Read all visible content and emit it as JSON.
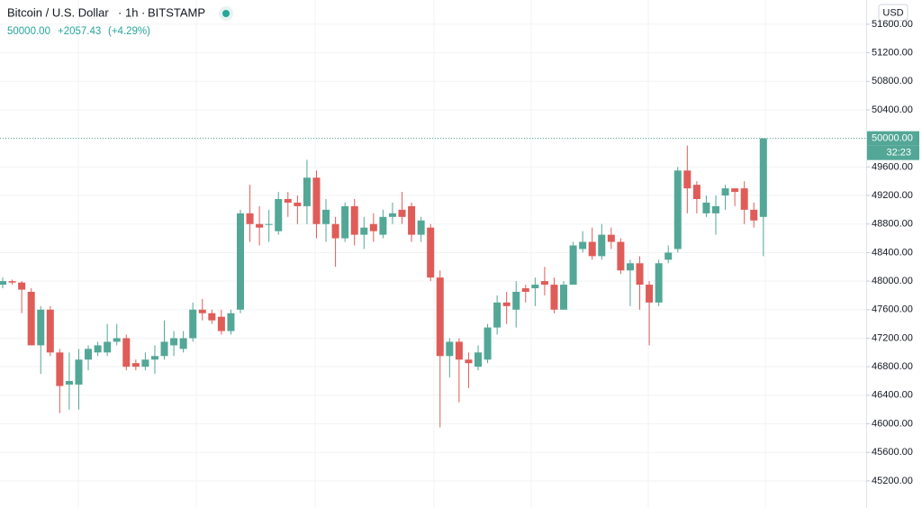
{
  "header": {
    "symbol": "Bitcoin / U.S. Dollar",
    "interval": "1h",
    "exchange": "BITSTAMP",
    "last": "50000.00",
    "change": "+2057.43",
    "change_pct": "(+4.29%)"
  },
  "currency_button": "USD",
  "countdown": "32:23",
  "chart_data": {
    "type": "candlestick",
    "up_color": "#53a797",
    "down_color": "#e05c58",
    "ylim": [
      44820,
      51940
    ],
    "yticks": [
      {
        "value": 45200,
        "label": "45200.00"
      },
      {
        "value": 45600,
        "label": "45600.00"
      },
      {
        "value": 46000,
        "label": "46000.00"
      },
      {
        "value": 46400,
        "label": "46400.00"
      },
      {
        "value": 46800,
        "label": "46800.00"
      },
      {
        "value": 47200,
        "label": "47200.00"
      },
      {
        "value": 47600,
        "label": "47600.00"
      },
      {
        "value": 48000,
        "label": "48000.00"
      },
      {
        "value": 48400,
        "label": "48400.00"
      },
      {
        "value": 48800,
        "label": "48800.00"
      },
      {
        "value": 49200,
        "label": "49200.00"
      },
      {
        "value": 49600,
        "label": "49600.00"
      },
      {
        "value": 50000,
        "label": "50000.00"
      },
      {
        "value": 50400,
        "label": "50400.00"
      },
      {
        "value": 50800,
        "label": "50800.00"
      },
      {
        "value": 51200,
        "label": "51200.00"
      },
      {
        "value": 51600,
        "label": "51600.00"
      }
    ],
    "grid": true,
    "last_price": {
      "value": 50000,
      "label": "50000.00"
    },
    "open": [
      47950,
      48000,
      47980,
      47850,
      47100,
      47600,
      47000,
      46550,
      46550,
      46900,
      47000,
      47000,
      47150,
      47200,
      46850,
      46800,
      46900,
      46950,
      47100,
      47050,
      47200,
      47600,
      47550,
      47500,
      47300,
      47600,
      48950,
      48800,
      48800,
      48700,
      49150,
      49100,
      49050,
      49450,
      48800,
      48800,
      48600,
      49050,
      48650,
      48800,
      48650,
      48900,
      49000,
      49050,
      48650,
      48750,
      48050,
      46950,
      47150,
      46900,
      46800,
      46900,
      47350,
      47700,
      47600,
      47900,
      47900,
      48000,
      47950,
      47600,
      47950,
      48450,
      48550,
      48350,
      48650,
      48550,
      48150,
      48250,
      47950,
      47700,
      48300,
      48450,
      49550,
      49350,
      48950,
      48950,
      49200,
      49300,
      49300,
      49000,
      48900
    ],
    "high": [
      48050,
      48020,
      48000,
      47900,
      47650,
      47650,
      47050,
      47000,
      47050,
      47100,
      47150,
      47400,
      47400,
      47250,
      46900,
      47000,
      47100,
      47450,
      47300,
      47300,
      47700,
      47750,
      47600,
      47600,
      47600,
      49000,
      49350,
      49050,
      49000,
      49250,
      49250,
      49200,
      49700,
      49550,
      49150,
      48900,
      49100,
      49150,
      48900,
      48950,
      49000,
      49100,
      49250,
      49100,
      48900,
      48800,
      48150,
      47200,
      47200,
      47000,
      47100,
      47400,
      47800,
      47850,
      48000,
      47950,
      48050,
      48200,
      48050,
      48000,
      48550,
      48700,
      48750,
      48800,
      48750,
      48600,
      48300,
      48350,
      48000,
      48300,
      48500,
      49600,
      49900,
      49400,
      49200,
      49200,
      49350,
      49300,
      49400,
      49100,
      50000
    ],
    "low": [
      47900,
      47950,
      47550,
      47100,
      46700,
      46950,
      46150,
      46200,
      46200,
      46750,
      46950,
      46950,
      47100,
      46750,
      46750,
      46750,
      46700,
      46900,
      46950,
      47000,
      47150,
      47450,
      47400,
      47250,
      47250,
      47550,
      48550,
      48500,
      48550,
      48650,
      48900,
      48800,
      48800,
      48600,
      48550,
      48200,
      48550,
      48500,
      48450,
      48550,
      48600,
      48800,
      48800,
      48550,
      48550,
      48000,
      45950,
      46650,
      46300,
      46500,
      46750,
      46850,
      47250,
      47400,
      47350,
      47700,
      47650,
      47800,
      47550,
      47600,
      47950,
      48400,
      48300,
      48300,
      48450,
      48100,
      47650,
      47600,
      47100,
      47650,
      48250,
      48400,
      48950,
      48950,
      48900,
      48650,
      49000,
      49050,
      48800,
      48750,
      48350
    ],
    "close": [
      48000,
      47980,
      47880,
      47100,
      47600,
      47000,
      46530,
      46600,
      46900,
      47050,
      47100,
      47150,
      47200,
      46800,
      46800,
      46900,
      46950,
      47150,
      47200,
      47200,
      47600,
      47550,
      47450,
      47300,
      47550,
      48950,
      48800,
      48750,
      48800,
      49150,
      49100,
      49050,
      49450,
      48800,
      49000,
      48600,
      49050,
      48650,
      48750,
      48700,
      48900,
      48950,
      48900,
      48650,
      48850,
      48050,
      46950,
      47150,
      46900,
      46850,
      47000,
      47350,
      47700,
      47650,
      47850,
      47850,
      47950,
      47950,
      47600,
      47950,
      48500,
      48550,
      48350,
      48650,
      48550,
      48150,
      48250,
      47950,
      47700,
      48250,
      48400,
      49550,
      49300,
      49150,
      49100,
      49050,
      49300,
      49250,
      49000,
      48850,
      50000
    ]
  }
}
